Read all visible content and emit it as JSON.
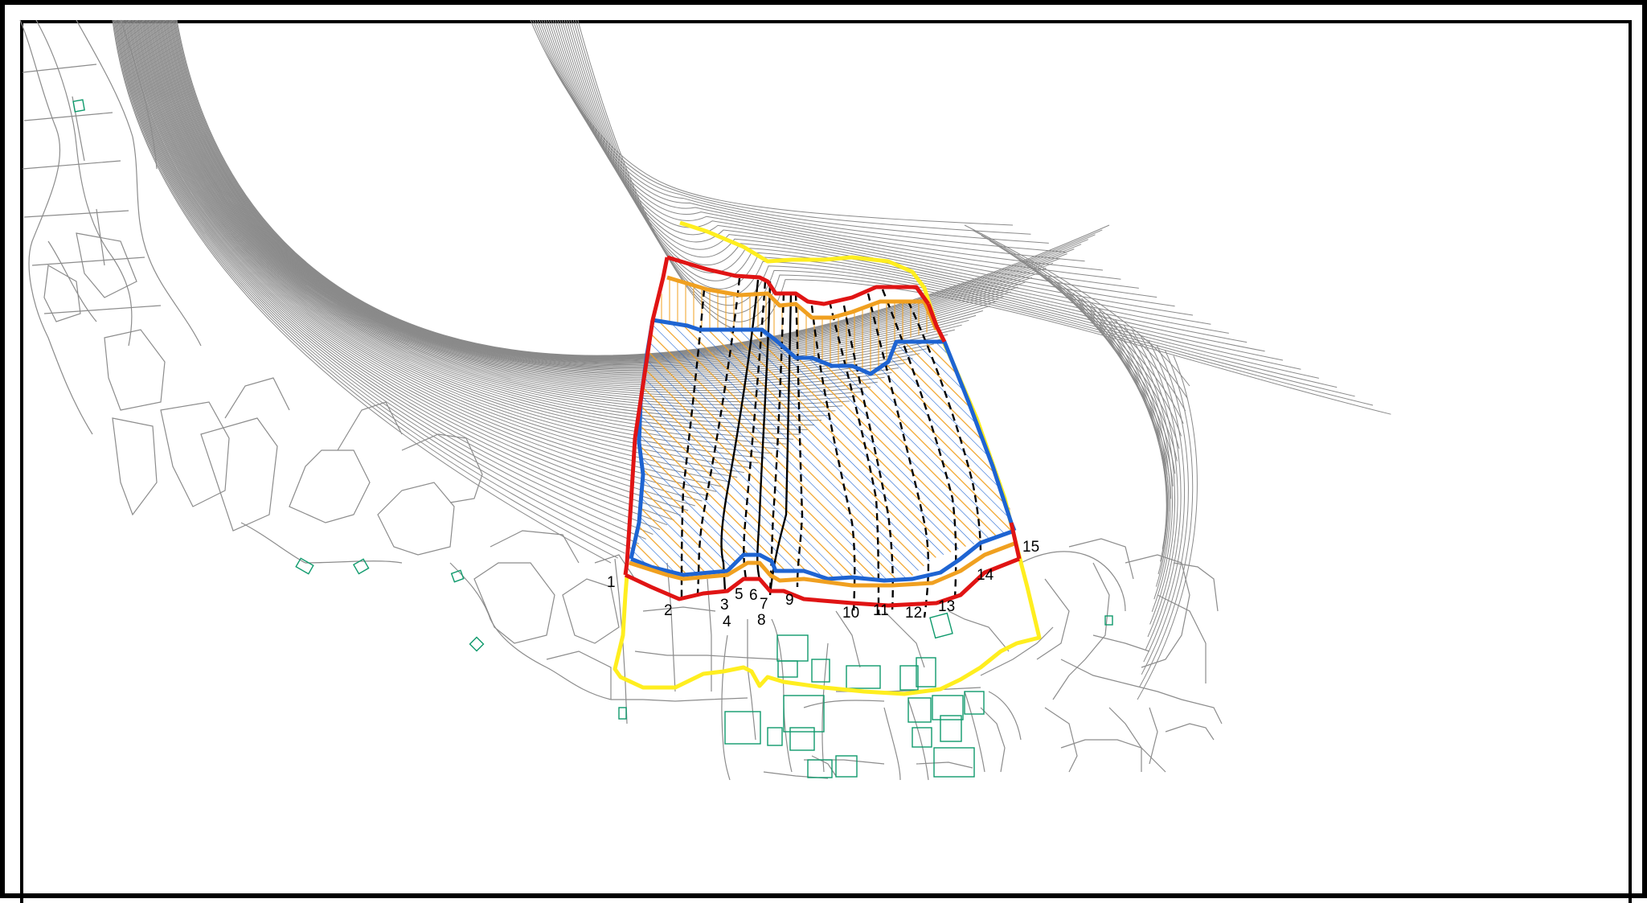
{
  "map": {
    "colors": {
      "contour": "#8a8a8a",
      "parcel": "#8c8c8c",
      "building": "#0f9a6c",
      "survey_area": "#ffee1f",
      "red_line": "#e01414",
      "orange_line": "#f0a020",
      "blue_line": "#1e64d2",
      "section_line": "#000000",
      "border": "#000000",
      "background": "#ffffff"
    },
    "section_labels": [
      "1",
      "2",
      "3",
      "4",
      "5",
      "6",
      "7",
      "8",
      "9",
      "10",
      "11",
      "12",
      "13",
      "14",
      "15"
    ]
  }
}
